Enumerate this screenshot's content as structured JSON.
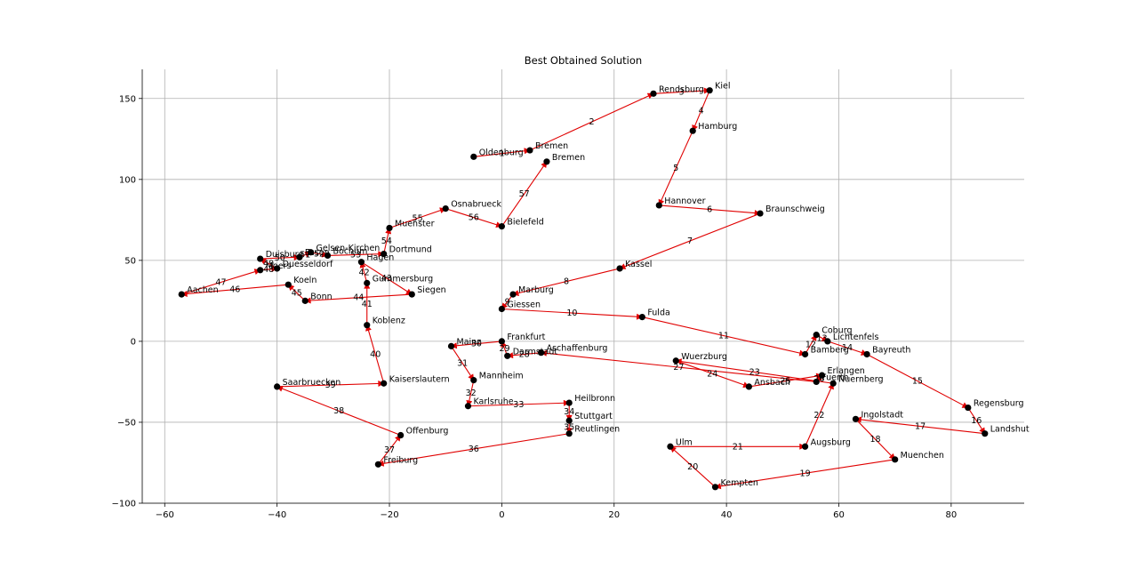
{
  "chart_data": {
    "type": "scatter",
    "title": "Best Obtained Solution",
    "xlim": [
      -64,
      93
    ],
    "ylim": [
      -100,
      168
    ],
    "x_ticks": [
      -60,
      -40,
      -20,
      0,
      20,
      40,
      60,
      80
    ],
    "x_tick_labels": [
      "−60",
      "−40",
      "−20",
      "0",
      "20",
      "40",
      "60",
      "80"
    ],
    "y_ticks": [
      -100,
      -50,
      0,
      50,
      100,
      150
    ],
    "y_tick_labels": [
      "−100",
      "−50",
      "0",
      "50",
      "100",
      "150"
    ],
    "grid": true,
    "colors": {
      "node": "#000000",
      "edge": "#e00000",
      "grid": "#b0b0b0"
    },
    "cities": [
      {
        "name": "Oldenburg",
        "x": -5,
        "y": 114
      },
      {
        "name": "Bremen",
        "x": 5,
        "y": 118
      },
      {
        "name": "Rendsburg",
        "x": 27,
        "y": 153
      },
      {
        "name": "Kiel",
        "x": 37,
        "y": 155
      },
      {
        "name": "Hamburg",
        "x": 34,
        "y": 130
      },
      {
        "name": "Hannover",
        "x": 28,
        "y": 84
      },
      {
        "name": "Braunschweig",
        "x": 46,
        "y": 79
      },
      {
        "name": "Kassel",
        "x": 21,
        "y": 45
      },
      {
        "name": "Marburg",
        "x": 2,
        "y": 29
      },
      {
        "name": "Giessen",
        "x": 0,
        "y": 20
      },
      {
        "name": "Fulda",
        "x": 25,
        "y": 15
      },
      {
        "name": "Bamberg",
        "x": 54,
        "y": -8
      },
      {
        "name": "Coburg",
        "x": 56,
        "y": 4
      },
      {
        "name": "Lichtenfels",
        "x": 58,
        "y": 0
      },
      {
        "name": "Bayreuth",
        "x": 65,
        "y": -8
      },
      {
        "name": "Regensburg",
        "x": 83,
        "y": -41
      },
      {
        "name": "Landshut",
        "x": 86,
        "y": -57
      },
      {
        "name": "Ingolstadt",
        "x": 63,
        "y": -48
      },
      {
        "name": "Muenchen",
        "x": 70,
        "y": -73
      },
      {
        "name": "Kempten",
        "x": 38,
        "y": -90
      },
      {
        "name": "Ulm",
        "x": 30,
        "y": -65
      },
      {
        "name": "Augsburg",
        "x": 54,
        "y": -65
      },
      {
        "name": "Nuernberg",
        "x": 59,
        "y": -26
      },
      {
        "name": "Wuerzburg",
        "x": 31,
        "y": -12
      },
      {
        "name": "Ansbach",
        "x": 44,
        "y": -28
      },
      {
        "name": "Erlangen",
        "x": 57,
        "y": -21
      },
      {
        "name": "Fuerth",
        "x": 56,
        "y": -25
      },
      {
        "name": "Aschaffenburg",
        "x": 7,
        "y": -7
      },
      {
        "name": "Darmstadt",
        "x": 1,
        "y": -9
      },
      {
        "name": "Frankfurt",
        "x": 0,
        "y": 0
      },
      {
        "name": "Mainz",
        "x": -9,
        "y": -3
      },
      {
        "name": "Mannheim",
        "x": -5,
        "y": -24
      },
      {
        "name": "Karlsruhe",
        "x": -6,
        "y": -40
      },
      {
        "name": "Heilbronn",
        "x": 12,
        "y": -38
      },
      {
        "name": "Stuttgart",
        "x": 12,
        "y": -49
      },
      {
        "name": "Reutlingen",
        "x": 12,
        "y": -57
      },
      {
        "name": "Freiburg",
        "x": -22,
        "y": -76
      },
      {
        "name": "Offenburg",
        "x": -18,
        "y": -58
      },
      {
        "name": "Saarbruecken",
        "x": -40,
        "y": -28
      },
      {
        "name": "Kaiserslautern",
        "x": -21,
        "y": -26
      },
      {
        "name": "Koblenz",
        "x": -24,
        "y": 10
      },
      {
        "name": "Gummersburg",
        "x": -24,
        "y": 36
      },
      {
        "name": "Hagen",
        "x": -25,
        "y": 49
      },
      {
        "name": "Siegen",
        "x": -16,
        "y": 29
      },
      {
        "name": "Bonn",
        "x": -35,
        "y": 25
      },
      {
        "name": "Koeln",
        "x": -38,
        "y": 35
      },
      {
        "name": "Aachen",
        "x": -57,
        "y": 29
      },
      {
        "name": "Moers",
        "x": -43,
        "y": 44
      },
      {
        "name": "Duesseldorf",
        "x": -40,
        "y": 45
      },
      {
        "name": "Duisburg",
        "x": -43,
        "y": 51
      },
      {
        "name": "Essen",
        "x": -36,
        "y": 52
      },
      {
        "name": "Gelsen-Kirchen",
        "x": -34,
        "y": 55
      },
      {
        "name": "Bochum",
        "x": -31,
        "y": 53
      },
      {
        "name": "Dortmund",
        "x": -21,
        "y": 54
      },
      {
        "name": "Muenster",
        "x": -20,
        "y": 70
      },
      {
        "name": "Osnabrueck",
        "x": -10,
        "y": 82
      },
      {
        "name": "Bielefeld",
        "x": 0,
        "y": 71
      },
      {
        "name": "Bremen",
        "x": 8,
        "y": 111
      }
    ],
    "route_labels": [
      "1",
      "2",
      "3",
      "4",
      "5",
      "6",
      "7",
      "8",
      "9",
      "10",
      "11",
      "12",
      "13",
      "14",
      "15",
      "16",
      "17",
      "18",
      "19",
      "20",
      "21",
      "22",
      "23",
      "24",
      "25",
      "26",
      "27",
      "28",
      "29",
      "30",
      "31",
      "32",
      "33",
      "34",
      "35",
      "36",
      "37",
      "38",
      "39",
      "40",
      "41",
      "42",
      "43",
      "44",
      "45",
      "46",
      "47",
      "48",
      "49",
      "50",
      "51",
      "52",
      "53",
      "54",
      "55",
      "56",
      "57",
      "58",
      "59"
    ]
  }
}
